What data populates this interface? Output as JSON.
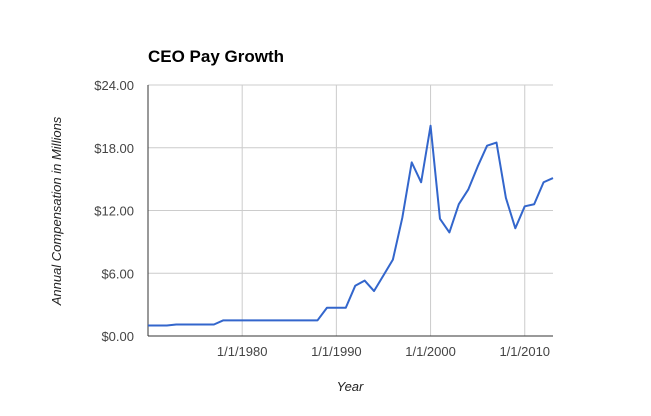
{
  "chart_data": {
    "type": "line",
    "title": "CEO Pay Growth",
    "xlabel": "Year",
    "ylabel": "Annual Compensation in Millions",
    "ylim": [
      0,
      24
    ],
    "xlim": [
      1970,
      2013
    ],
    "grid": true,
    "legend": "none",
    "yticks": [
      "$0.00",
      "$6.00",
      "$12.00",
      "$18.00",
      "$24.00"
    ],
    "ytick_values": [
      0,
      6,
      12,
      18,
      24
    ],
    "xticks": [
      "1/1/1980",
      "1/1/1990",
      "1/1/2000",
      "1/1/2010"
    ],
    "xtick_values": [
      1980,
      1990,
      2000,
      2010
    ],
    "color": "#3366cc",
    "series": [
      {
        "x": [
          1970,
          1971,
          1972,
          1973,
          1974,
          1975,
          1976,
          1977,
          1978,
          1979,
          1980,
          1981,
          1982,
          1983,
          1984,
          1985,
          1986,
          1987,
          1988,
          1989,
          1990,
          1991,
          1992,
          1993,
          1994,
          1995,
          1996,
          1997,
          1998,
          1999,
          2000,
          2001,
          2002,
          2003,
          2004,
          2005,
          2006,
          2007,
          2008,
          2009,
          2010,
          2011,
          2012,
          2013
        ],
        "values": [
          1.0,
          1.0,
          1.0,
          1.1,
          1.1,
          1.1,
          1.1,
          1.1,
          1.5,
          1.5,
          1.5,
          1.5,
          1.5,
          1.5,
          1.5,
          1.5,
          1.5,
          1.5,
          1.5,
          2.7,
          2.7,
          2.7,
          4.8,
          5.3,
          4.3,
          5.8,
          7.3,
          11.3,
          16.6,
          14.7,
          20.1,
          11.2,
          9.9,
          12.6,
          14.0,
          16.2,
          18.2,
          18.5,
          13.2,
          10.3,
          12.4,
          12.6,
          14.7,
          15.1
        ]
      }
    ]
  }
}
